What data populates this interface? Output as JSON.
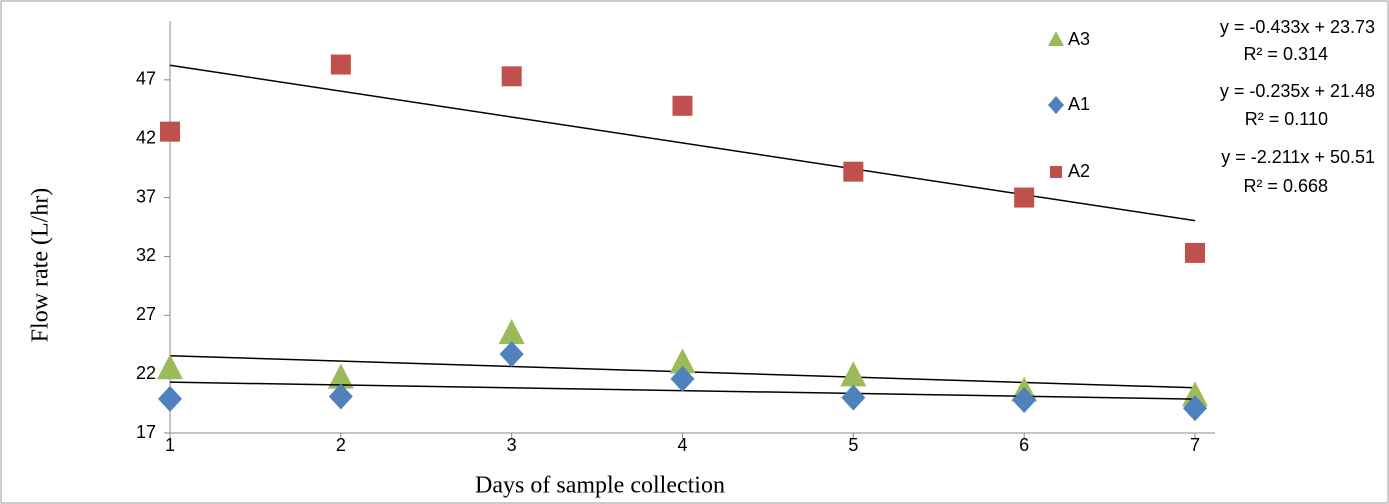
{
  "chart_data": {
    "type": "scatter",
    "x_label": "Days of sample collection",
    "y_label": "Flow rate  (L/hr)",
    "x": [
      1,
      2,
      3,
      4,
      5,
      6,
      7
    ],
    "xlim": [
      1,
      7
    ],
    "xticks": [
      1,
      2,
      3,
      4,
      5,
      6,
      7
    ],
    "ylim": [
      17,
      52
    ],
    "yticks": [
      17,
      22,
      27,
      32,
      37,
      42,
      47
    ],
    "series": [
      {
        "name": "A3",
        "color": "#9bbb59",
        "marker": "triangle",
        "values": [
          22.5,
          21.7,
          25.5,
          23.0,
          21.9,
          20.6,
          20.2
        ],
        "trendline_label": [
          "y = -0.433x + 23.73",
          "R² = 0.314"
        ]
      },
      {
        "name": "A1",
        "color": "#4f81bd",
        "marker": "diamond",
        "values": [
          19.9,
          20.1,
          23.7,
          21.6,
          20.0,
          19.8,
          19.1
        ],
        "trendline_label": [
          "y = -0.235x + 21.48",
          "R² = 0.110"
        ]
      },
      {
        "name": "A2",
        "color": "#c0504d",
        "marker": "square",
        "values": [
          42.6,
          48.3,
          47.3,
          44.8,
          39.2,
          37.0,
          32.3
        ],
        "trendline_label": [
          "y = -2.211x + 50.51",
          "R² = 0.668"
        ]
      }
    ]
  }
}
